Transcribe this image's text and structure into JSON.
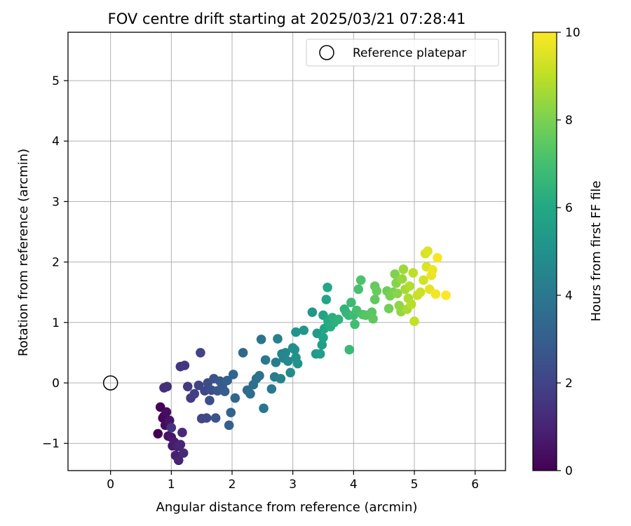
{
  "chart_data": {
    "type": "scatter",
    "title": "FOV centre drift starting at 2025/03/21 07:28:41",
    "xlabel": "Angular distance from reference (arcmin)",
    "ylabel": "Rotation from reference (arcmin)",
    "xlim": [
      -0.7,
      6.5
    ],
    "ylim": [
      -1.45,
      5.8
    ],
    "x_ticks": [
      0,
      1,
      2,
      3,
      4,
      5,
      6
    ],
    "x_tick_labels": [
      "0",
      "1",
      "2",
      "3",
      "4",
      "5",
      "6"
    ],
    "y_ticks": [
      -1,
      0,
      1,
      2,
      3,
      4,
      5
    ],
    "y_tick_labels": [
      "−1",
      "0",
      "1",
      "2",
      "3",
      "4",
      "5"
    ],
    "grid": true,
    "legend": {
      "position": "top-right",
      "entries": [
        "Reference platepar"
      ]
    },
    "reference_point": {
      "x": 0.0,
      "y": 0.0,
      "label": "Reference platepar"
    },
    "colorbar": {
      "label": "Hours from first FF file",
      "colormap": "viridis",
      "range": [
        0,
        10
      ],
      "ticks": [
        0,
        2,
        4,
        6,
        8,
        10
      ],
      "tick_labels": [
        "0",
        "2",
        "4",
        "6",
        "8",
        "10"
      ]
    },
    "series": [
      {
        "points": [
          [
            0.78,
            -0.84
          ],
          [
            0.82,
            -0.4
          ],
          [
            0.86,
            -0.58
          ],
          [
            0.88,
            -0.55
          ],
          [
            0.9,
            -0.7
          ],
          [
            0.92,
            -0.48
          ],
          [
            0.95,
            -0.88
          ],
          [
            0.97,
            -0.62
          ],
          [
            1.0,
            -0.9
          ],
          [
            1.02,
            -1.04
          ],
          [
            1.05,
            -0.98
          ],
          [
            1.07,
            -1.2
          ],
          [
            1.1,
            -1.05
          ],
          [
            1.12,
            -1.28
          ],
          [
            1.15,
            -1.02
          ],
          [
            1.18,
            -0.82
          ],
          [
            1.2,
            -1.16
          ],
          [
            0.88,
            -0.08
          ],
          [
            0.93,
            -0.06
          ],
          [
            1.0,
            -0.74
          ],
          [
            1.15,
            0.27
          ],
          [
            1.22,
            0.29
          ],
          [
            1.27,
            -0.06
          ],
          [
            1.32,
            -0.25
          ],
          [
            1.38,
            -0.18
          ],
          [
            1.45,
            -0.04
          ],
          [
            1.48,
            0.5
          ],
          [
            1.5,
            -0.59
          ],
          [
            1.55,
            -0.13
          ],
          [
            1.58,
            -0.58
          ],
          [
            1.6,
            0.0
          ],
          [
            1.63,
            -0.29
          ],
          [
            1.66,
            -0.12
          ],
          [
            1.7,
            0.07
          ],
          [
            1.73,
            -0.58
          ],
          [
            1.76,
            -0.13
          ],
          [
            1.8,
            0.03
          ],
          [
            1.84,
            -0.05
          ],
          [
            1.88,
            -0.14
          ],
          [
            1.92,
            0.04
          ],
          [
            1.95,
            -0.7
          ],
          [
            1.98,
            -0.49
          ],
          [
            2.02,
            0.14
          ],
          [
            2.05,
            -0.25
          ],
          [
            2.18,
            0.5
          ],
          [
            2.25,
            -0.12
          ],
          [
            2.3,
            -0.18
          ],
          [
            2.35,
            -0.03
          ],
          [
            2.4,
            0.07
          ],
          [
            2.45,
            0.12
          ],
          [
            2.48,
            0.72
          ],
          [
            2.52,
            -0.42
          ],
          [
            2.55,
            0.38
          ],
          [
            2.65,
            -0.1
          ],
          [
            2.7,
            0.1
          ],
          [
            2.72,
            0.34
          ],
          [
            2.75,
            0.73
          ],
          [
            2.8,
            0.07
          ],
          [
            2.82,
            0.48
          ],
          [
            2.85,
            0.41
          ],
          [
            2.88,
            0.5
          ],
          [
            2.92,
            0.36
          ],
          [
            2.96,
            0.17
          ],
          [
            3.0,
            0.58
          ],
          [
            3.03,
            0.55
          ],
          [
            3.05,
            0.42
          ],
          [
            3.08,
            0.32
          ],
          [
            3.05,
            0.84
          ],
          [
            3.18,
            0.87
          ],
          [
            3.32,
            1.17
          ],
          [
            3.38,
            0.48
          ],
          [
            3.4,
            0.82
          ],
          [
            3.45,
            0.48
          ],
          [
            3.48,
            0.63
          ],
          [
            3.5,
            0.75
          ],
          [
            3.5,
            1.12
          ],
          [
            3.52,
            0.9
          ],
          [
            3.55,
            1.38
          ],
          [
            3.57,
            1.58
          ],
          [
            3.58,
            1.02
          ],
          [
            3.62,
            0.93
          ],
          [
            3.65,
            1.08
          ],
          [
            3.68,
            1.0
          ],
          [
            3.75,
            1.05
          ],
          [
            3.85,
            1.22
          ],
          [
            3.88,
            1.16
          ],
          [
            3.92,
            1.12
          ],
          [
            3.93,
            0.55
          ],
          [
            3.96,
            1.33
          ],
          [
            4.0,
            1.12
          ],
          [
            4.02,
            0.97
          ],
          [
            4.05,
            1.2
          ],
          [
            4.08,
            1.55
          ],
          [
            4.12,
            1.7
          ],
          [
            4.15,
            1.13
          ],
          [
            4.2,
            1.12
          ],
          [
            4.3,
            1.17
          ],
          [
            4.32,
            1.06
          ],
          [
            4.35,
            1.38
          ],
          [
            4.35,
            1.6
          ],
          [
            4.38,
            1.52
          ],
          [
            4.55,
            1.52
          ],
          [
            4.58,
            1.23
          ],
          [
            4.6,
            1.44
          ],
          [
            4.65,
            1.5
          ],
          [
            4.68,
            1.8
          ],
          [
            4.7,
            1.65
          ],
          [
            4.72,
            1.48
          ],
          [
            4.75,
            1.28
          ],
          [
            4.78,
            1.18
          ],
          [
            4.8,
            1.72
          ],
          [
            4.82,
            1.88
          ],
          [
            4.85,
            1.55
          ],
          [
            4.88,
            1.22
          ],
          [
            4.9,
            1.4
          ],
          [
            4.92,
            1.6
          ],
          [
            4.95,
            1.3
          ],
          [
            4.98,
            1.82
          ],
          [
            5.0,
            1.02
          ],
          [
            5.05,
            1.45
          ],
          [
            5.1,
            1.5
          ],
          [
            5.15,
            1.7
          ],
          [
            5.18,
            2.14
          ],
          [
            5.2,
            1.92
          ],
          [
            5.22,
            2.18
          ],
          [
            5.25,
            1.55
          ],
          [
            5.28,
            1.78
          ],
          [
            5.3,
            1.87
          ],
          [
            5.35,
            1.47
          ],
          [
            5.38,
            2.07
          ],
          [
            5.52,
            1.45
          ]
        ]
      }
    ]
  }
}
